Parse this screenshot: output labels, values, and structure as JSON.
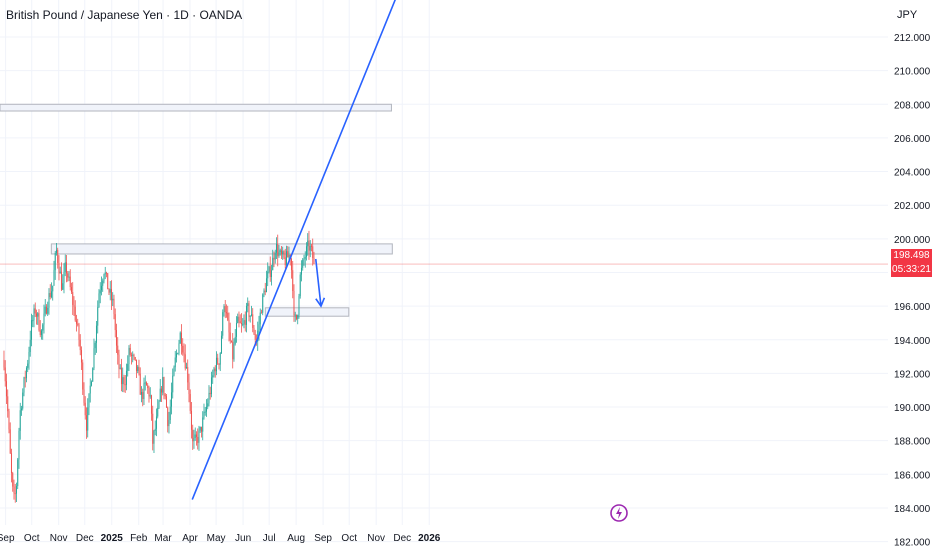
{
  "header": {
    "title": "British Pound / Japanese Yen · 1D · OANDA",
    "currency": "JPY"
  },
  "price_tag": {
    "price": "198.498",
    "countdown": "05:33:21",
    "color": "#f23645"
  },
  "colors": {
    "up": "#26a69a",
    "down": "#ef5350",
    "trendline": "#2962ff",
    "zone_fill": "#f0f3fa",
    "zone_border": "#b2b5be",
    "grid": "#f0f3fa"
  },
  "footer": {
    "logo_icon": "lightning-bolt-icon"
  },
  "chart_data": {
    "type": "candlestick",
    "title": "British Pound / Japanese Yen · 1D · OANDA",
    "symbol": "GBPJPY",
    "interval": "1D",
    "ylim": [
      181.5,
      214.2
    ],
    "y_ticks": [
      "182.000",
      "184.000",
      "186.000",
      "188.000",
      "190.000",
      "192.000",
      "194.000",
      "196.000",
      "198.000",
      "200.000",
      "202.000",
      "204.000",
      "206.000",
      "208.000",
      "210.000",
      "212.000"
    ],
    "x_ticks": [
      "Sep",
      "Oct",
      "Nov",
      "Dec",
      "2025",
      "Feb",
      "Mar",
      "Apr",
      "May",
      "Jun",
      "Jul",
      "Aug",
      "Sep",
      "Oct",
      "Nov",
      "Dec",
      "2026"
    ],
    "last_price": 198.498,
    "price_path": [
      [
        "2024-09-02",
        192.8
      ],
      [
        "2024-09-06",
        190.0
      ],
      [
        "2024-09-10",
        186.3
      ],
      [
        "2024-09-13",
        184.4
      ],
      [
        "2024-09-16",
        185.0
      ],
      [
        "2024-09-20",
        189.5
      ],
      [
        "2024-09-25",
        191.4
      ],
      [
        "2024-09-30",
        193.0
      ],
      [
        "2024-10-03",
        194.7
      ],
      [
        "2024-10-08",
        195.8
      ],
      [
        "2024-10-15",
        194.4
      ],
      [
        "2024-10-22",
        196.3
      ],
      [
        "2024-10-28",
        197.2
      ],
      [
        "2024-11-01",
        199.4
      ],
      [
        "2024-11-05",
        198.1
      ],
      [
        "2024-11-08",
        197.0
      ],
      [
        "2024-11-12",
        198.4
      ],
      [
        "2024-11-18",
        196.8
      ],
      [
        "2024-11-22",
        195.7
      ],
      [
        "2024-11-28",
        193.8
      ],
      [
        "2024-12-03",
        190.5
      ],
      [
        "2024-12-06",
        188.9
      ],
      [
        "2024-12-10",
        191.1
      ],
      [
        "2024-12-16",
        194.2
      ],
      [
        "2024-12-20",
        196.8
      ],
      [
        "2024-12-26",
        198.2
      ],
      [
        "2024-12-31",
        197.0
      ],
      [
        "2025-01-06",
        196.0
      ],
      [
        "2025-01-10",
        193.0
      ],
      [
        "2025-01-15",
        191.5
      ],
      [
        "2025-01-20",
        191.7
      ],
      [
        "2025-01-24",
        193.3
      ],
      [
        "2025-01-29",
        192.7
      ],
      [
        "2025-02-03",
        192.0
      ],
      [
        "2025-02-07",
        190.6
      ],
      [
        "2025-02-12",
        191.3
      ],
      [
        "2025-02-17",
        190.7
      ],
      [
        "2025-02-20",
        187.9
      ],
      [
        "2025-02-25",
        189.3
      ],
      [
        "2025-03-03",
        191.6
      ],
      [
        "2025-03-07",
        190.4
      ],
      [
        "2025-03-10",
        188.9
      ],
      [
        "2025-03-14",
        191.0
      ],
      [
        "2025-03-18",
        192.8
      ],
      [
        "2025-03-24",
        194.4
      ],
      [
        "2025-03-28",
        193.2
      ],
      [
        "2025-04-02",
        191.5
      ],
      [
        "2025-04-07",
        187.8
      ],
      [
        "2025-04-11",
        188.0
      ],
      [
        "2025-04-15",
        188.4
      ],
      [
        "2025-04-22",
        189.8
      ],
      [
        "2025-04-28",
        191.2
      ],
      [
        "2025-05-02",
        192.4
      ],
      [
        "2025-05-08",
        192.9
      ],
      [
        "2025-05-13",
        196.4
      ],
      [
        "2025-05-19",
        194.2
      ],
      [
        "2025-05-23",
        193.0
      ],
      [
        "2025-05-28",
        195.0
      ],
      [
        "2025-06-03",
        194.7
      ],
      [
        "2025-06-09",
        195.8
      ],
      [
        "2025-06-13",
        195.4
      ],
      [
        "2025-06-19",
        193.8
      ],
      [
        "2025-06-25",
        196.0
      ],
      [
        "2025-07-01",
        197.6
      ],
      [
        "2025-07-07",
        198.4
      ],
      [
        "2025-07-11",
        199.6
      ],
      [
        "2025-07-16",
        199.0
      ],
      [
        "2025-07-22",
        198.7
      ],
      [
        "2025-07-28",
        199.1
      ],
      [
        "2025-07-31",
        197.3
      ],
      [
        "2025-08-01",
        195.1
      ],
      [
        "2025-08-05",
        195.3
      ],
      [
        "2025-08-08",
        197.6
      ],
      [
        "2025-08-13",
        198.8
      ],
      [
        "2025-08-18",
        199.6
      ],
      [
        "2025-08-21",
        199.3
      ],
      [
        "2025-08-25",
        198.498
      ]
    ],
    "trendline": {
      "from": [
        "2025-04-07",
        184.5
      ],
      "to": [
        "2025-11-27",
        214.3
      ]
    },
    "zones": [
      {
        "y_top": 208.0,
        "y_bottom": 207.6,
        "x_start": "2024-08-26",
        "x_end": "2025-11-22"
      },
      {
        "y_top": 199.7,
        "y_bottom": 199.1,
        "x_start": "2024-10-27",
        "x_end": "2025-11-23"
      },
      {
        "y_top": 195.9,
        "y_bottom": 195.4,
        "x_start": "2025-06-30",
        "x_end": "2025-10-04"
      }
    ],
    "projection_arrow": {
      "from": [
        "2025-08-27",
        198.8
      ],
      "to": [
        "2025-09-02",
        196.0
      ]
    }
  }
}
